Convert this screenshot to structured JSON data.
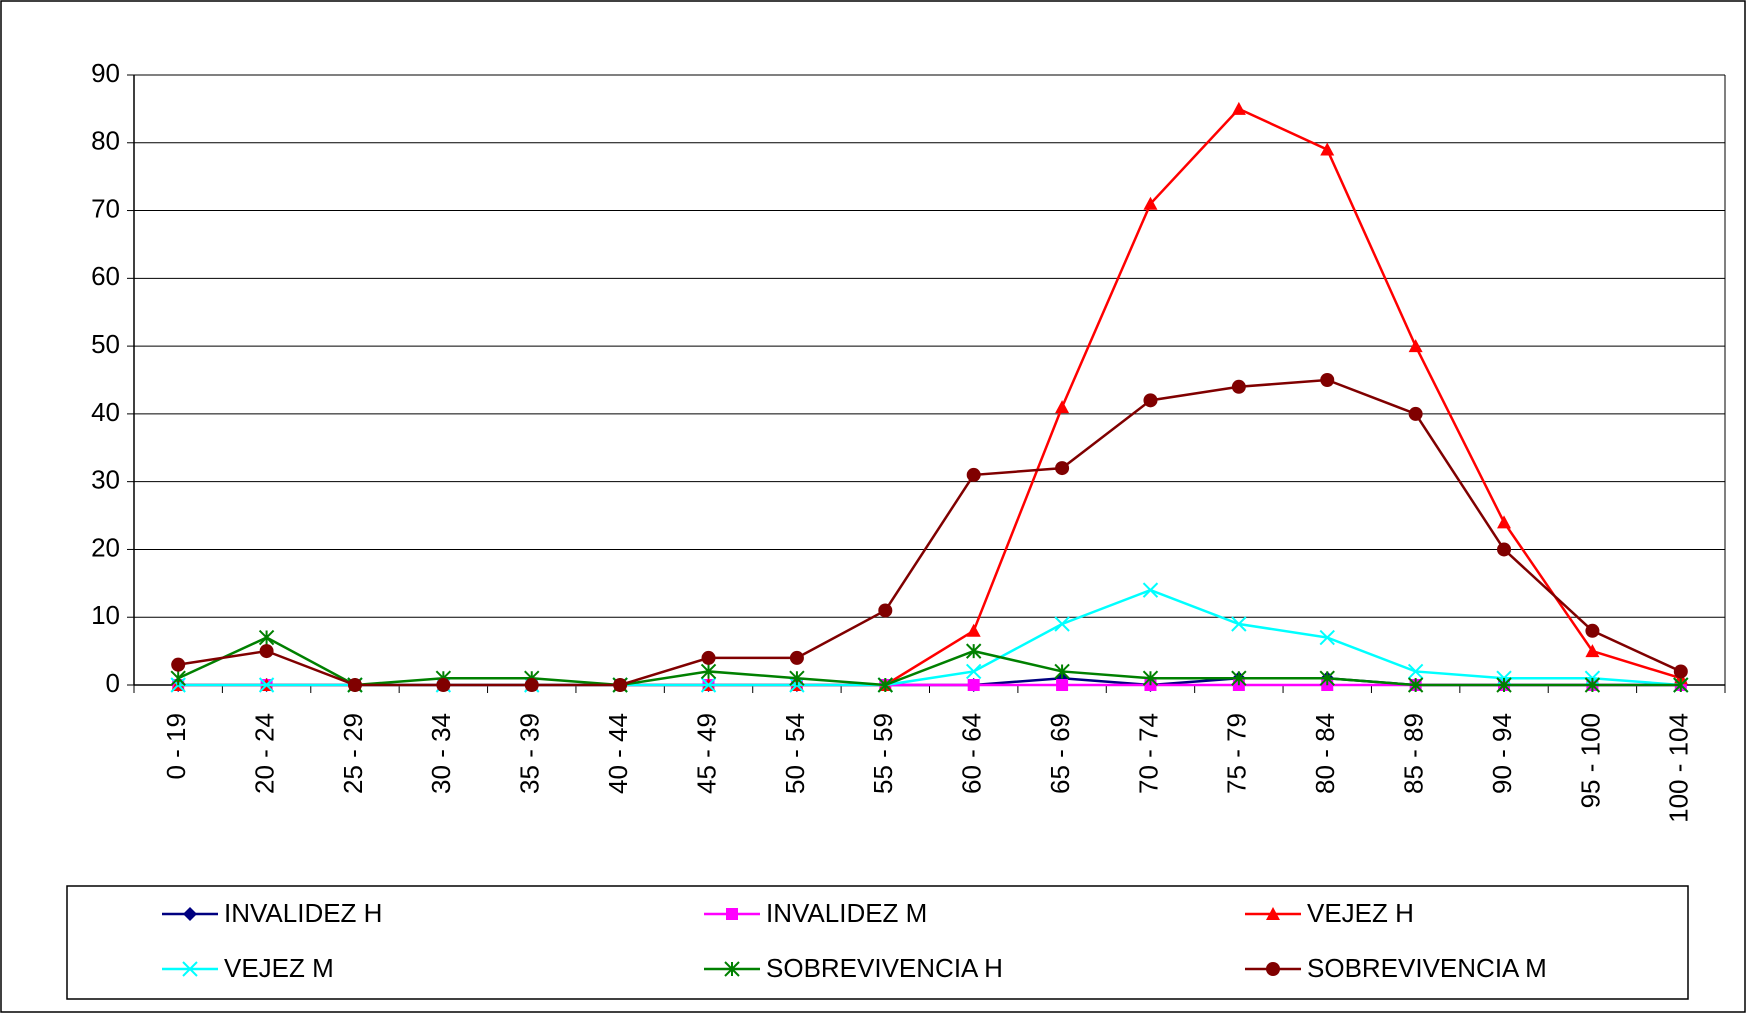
{
  "chart_data": {
    "type": "line",
    "categories": [
      "0 - 19",
      "20 - 24",
      "25 - 29",
      "30 - 34",
      "35 - 39",
      "40 - 44",
      "45 - 49",
      "50 - 54",
      "55 - 59",
      "60 - 64",
      "65 - 69",
      "70 - 74",
      "75 - 79",
      "80 - 84",
      "85 - 89",
      "90 - 94",
      "95 - 100",
      "100 - 104"
    ],
    "ylim": [
      0,
      90
    ],
    "yticks": [
      0,
      10,
      20,
      30,
      40,
      50,
      60,
      70,
      80,
      90
    ],
    "grid": true,
    "legend": "bottom",
    "series": [
      {
        "name": "INVALIDEZ H",
        "color": "#000080",
        "marker": "diamond",
        "values": [
          0,
          0,
          0,
          0,
          0,
          0,
          0,
          0,
          0,
          0,
          1,
          0,
          1,
          1,
          0,
          0,
          0,
          0
        ]
      },
      {
        "name": "INVALIDEZ M",
        "color": "#ff00ff",
        "marker": "square",
        "values": [
          0,
          0,
          0,
          0,
          0,
          0,
          0,
          0,
          0,
          0,
          0,
          0,
          0,
          0,
          0,
          0,
          0,
          0
        ]
      },
      {
        "name": "VEJEZ H",
        "color": "#ff0000",
        "marker": "triangle",
        "values": [
          0,
          0,
          0,
          0,
          0,
          0,
          0,
          0,
          0,
          8,
          41,
          71,
          85,
          79,
          50,
          24,
          5,
          1
        ]
      },
      {
        "name": "VEJEZ M",
        "color": "#00ffff",
        "marker": "x",
        "values": [
          0,
          0,
          0,
          0,
          0,
          0,
          0,
          0,
          0,
          2,
          9,
          14,
          9,
          7,
          2,
          1,
          1,
          0
        ]
      },
      {
        "name": "SOBREVIVENCIA H",
        "color": "#008000",
        "marker": "star",
        "values": [
          1,
          7,
          0,
          1,
          1,
          0,
          2,
          1,
          0,
          5,
          2,
          1,
          1,
          1,
          0,
          0,
          0,
          0
        ]
      },
      {
        "name": "SOBREVIVENCIA M",
        "color": "#800000",
        "marker": "circle",
        "values": [
          3,
          5,
          0,
          0,
          0,
          0,
          4,
          4,
          11,
          31,
          32,
          42,
          44,
          45,
          40,
          20,
          8,
          2
        ]
      }
    ]
  }
}
